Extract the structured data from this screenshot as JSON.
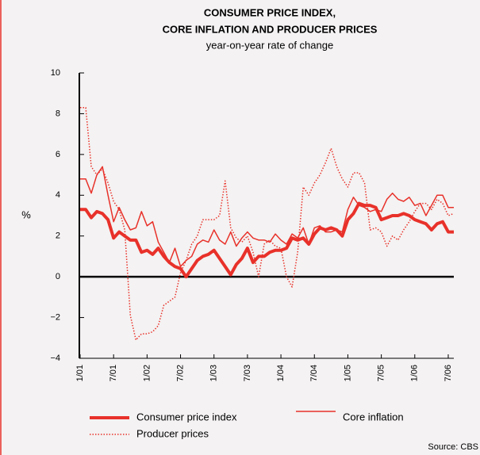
{
  "chart_data": {
    "type": "line",
    "title": [
      "CONSUMER PRICE INDEX,",
      "CORE INFLATION AND PRODUCER PRICES"
    ],
    "subtitle": "year-on-year rate of change",
    "ylabel": "%",
    "source": "Source: CBS",
    "categories": [
      "1/01",
      null,
      null,
      null,
      null,
      null,
      "7/01",
      null,
      null,
      null,
      null,
      null,
      "1/02",
      null,
      null,
      null,
      null,
      null,
      "7/02",
      null,
      null,
      null,
      null,
      null,
      "1/03",
      null,
      null,
      null,
      null,
      null,
      "7/03",
      null,
      null,
      null,
      null,
      null,
      "1/04",
      null,
      null,
      null,
      null,
      null,
      "7/04",
      null,
      null,
      null,
      null,
      null,
      "1/05",
      null,
      null,
      null,
      null,
      null,
      "7/05",
      null,
      null,
      null,
      null,
      null,
      "1/06",
      null,
      null,
      null,
      null,
      null,
      "7/06",
      null
    ],
    "series": [
      {
        "name": "Consumer price index",
        "color": "#e8312a",
        "style": "thick",
        "values": [
          3.3,
          3.3,
          2.9,
          3.2,
          3.1,
          2.8,
          1.9,
          2.2,
          2.0,
          1.8,
          1.8,
          1.2,
          1.3,
          1.1,
          1.4,
          1.0,
          0.7,
          0.5,
          0.4,
          0.0,
          0.4,
          0.8,
          1.0,
          1.1,
          1.3,
          0.9,
          0.5,
          0.1,
          0.6,
          0.9,
          1.4,
          0.7,
          1.0,
          1.0,
          1.2,
          1.3,
          1.3,
          1.4,
          1.9,
          1.8,
          1.9,
          1.6,
          2.1,
          2.4,
          2.3,
          2.4,
          2.3,
          2.0,
          2.8,
          3.1,
          3.6,
          3.5,
          3.5,
          3.4,
          2.8,
          2.9,
          3.0,
          3.0,
          3.1,
          3.0,
          2.8,
          2.7,
          2.6,
          2.3,
          2.6,
          2.7,
          2.2,
          2.2
        ]
      },
      {
        "name": "Core inflation",
        "color": "#e8312a",
        "style": "thin",
        "values": [
          4.8,
          4.8,
          4.1,
          5.0,
          5.4,
          4.0,
          2.7,
          3.4,
          2.8,
          2.3,
          2.4,
          3.2,
          2.5,
          2.7,
          1.7,
          1.2,
          0.7,
          1.4,
          0.5,
          0.8,
          1.0,
          1.6,
          1.8,
          1.7,
          2.3,
          1.8,
          1.6,
          2.2,
          1.5,
          1.9,
          2.2,
          1.9,
          1.8,
          1.8,
          1.7,
          2.1,
          1.8,
          1.6,
          2.1,
          1.9,
          2.4,
          1.6,
          2.4,
          2.5,
          2.2,
          2.2,
          2.3,
          2.2,
          3.3,
          3.9,
          3.5,
          3.4,
          3.2,
          3.3,
          3.2,
          3.8,
          4.1,
          3.8,
          3.7,
          3.9,
          3.5,
          3.6,
          3.0,
          3.5,
          4.0,
          4.0,
          3.4,
          3.4
        ]
      },
      {
        "name": "Producer prices",
        "color": "#e8312a",
        "style": "dotted",
        "values": [
          8.3,
          8.3,
          5.4,
          5.0,
          5.3,
          4.6,
          3.7,
          3.3,
          2.3,
          -1.9,
          -3.1,
          -2.8,
          -2.8,
          -2.7,
          -2.4,
          -1.4,
          -1.2,
          -1.0,
          0.2,
          0.8,
          1.6,
          2.0,
          2.8,
          2.8,
          2.8,
          3.0,
          4.7,
          2.4,
          1.9,
          1.7,
          2.0,
          1.2,
          0.0,
          1.6,
          1.8,
          1.5,
          1.4,
          0.0,
          -0.5,
          1.2,
          4.4,
          4.0,
          4.6,
          5.0,
          5.6,
          6.3,
          5.4,
          4.8,
          4.4,
          5.1,
          5.1,
          4.6,
          2.3,
          2.4,
          2.2,
          1.5,
          2.0,
          1.8,
          2.3,
          2.7,
          3.2,
          3.6,
          3.6,
          3.3,
          3.8,
          3.6,
          3.0,
          3.1
        ]
      }
    ],
    "ylim": [
      -4,
      10
    ],
    "yticks": [
      {
        "value": -4,
        "label": "−4"
      },
      {
        "value": -2,
        "label": "−2"
      },
      0,
      2,
      4,
      6,
      8,
      10
    ]
  }
}
